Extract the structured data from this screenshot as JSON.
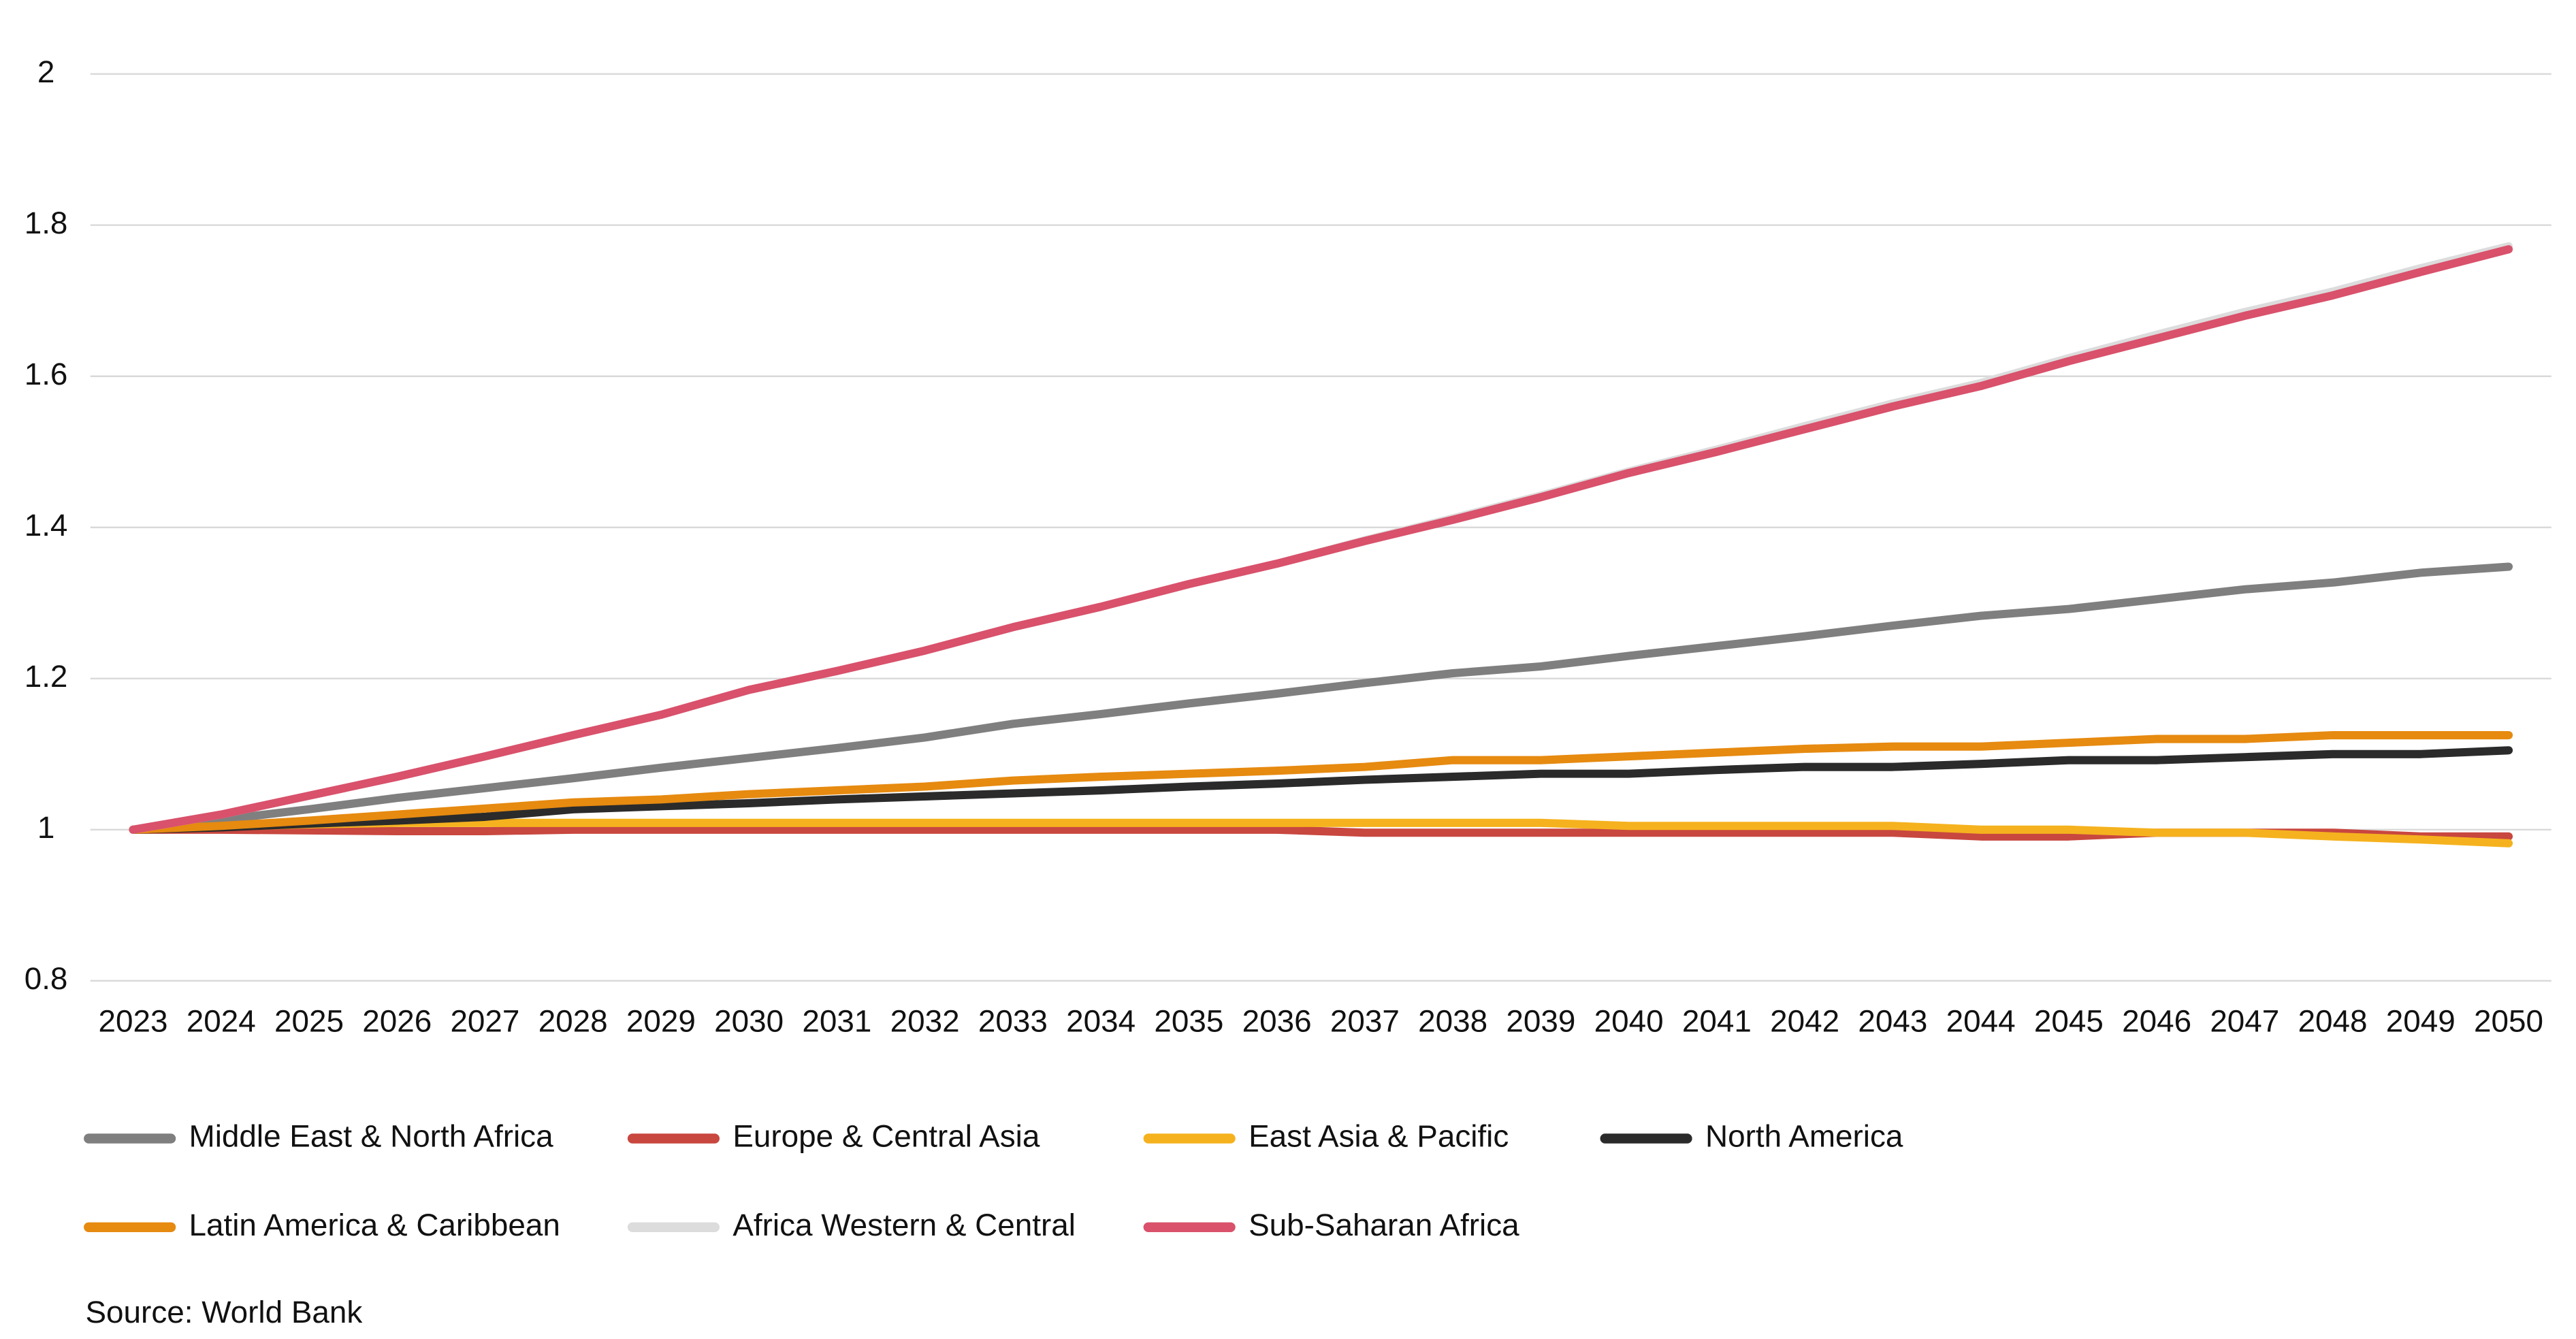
{
  "chart_data": {
    "type": "line",
    "categories": [
      "2023",
      "2024",
      "2025",
      "2026",
      "2027",
      "2028",
      "2029",
      "2030",
      "2031",
      "2032",
      "2033",
      "2034",
      "2035",
      "2036",
      "2037",
      "2038",
      "2039",
      "2040",
      "2041",
      "2042",
      "2043",
      "2044",
      "2045",
      "2046",
      "2047",
      "2048",
      "2049",
      "2050"
    ],
    "ylim": [
      0.8,
      2
    ],
    "yticks": [
      0.8,
      1,
      1.2,
      1.4,
      1.6,
      1.8,
      2
    ],
    "grid": true,
    "series": [
      {
        "name": "Middle East & North Africa",
        "color": "#7f7f7f",
        "values": [
          1.0,
          1.013,
          1.027,
          1.042,
          1.055,
          1.068,
          1.082,
          1.095,
          1.108,
          1.122,
          1.14,
          1.153,
          1.167,
          1.18,
          1.194,
          1.207,
          1.216,
          1.23,
          1.243,
          1.256,
          1.27,
          1.283,
          1.292,
          1.305,
          1.318,
          1.327,
          1.34,
          1.348
        ]
      },
      {
        "name": "Europe & Central Asia",
        "color": "#c8473f",
        "values": [
          1.0,
          1.0,
          0.999,
          0.998,
          0.998,
          1.0,
          1.0,
          1.0,
          1.0,
          1.0,
          1.0,
          1.0,
          1.0,
          1.0,
          0.996,
          0.996,
          0.996,
          0.996,
          0.996,
          0.996,
          0.996,
          0.991,
          0.991,
          0.996,
          0.996,
          0.996,
          0.991,
          0.991
        ]
      },
      {
        "name": "East Asia & Pacific",
        "color": "#f5b21e",
        "values": [
          1.0,
          1.004,
          1.007,
          1.009,
          1.009,
          1.009,
          1.009,
          1.009,
          1.009,
          1.009,
          1.009,
          1.009,
          1.009,
          1.009,
          1.009,
          1.009,
          1.009,
          1.005,
          1.005,
          1.005,
          1.005,
          1.0,
          1.0,
          0.996,
          0.996,
          0.991,
          0.987,
          0.982
        ]
      },
      {
        "name": "North America",
        "color": "#2b2b2b",
        "values": [
          1.0,
          1.003,
          1.008,
          1.012,
          1.017,
          1.027,
          1.031,
          1.035,
          1.04,
          1.044,
          1.048,
          1.052,
          1.057,
          1.061,
          1.066,
          1.07,
          1.074,
          1.074,
          1.079,
          1.083,
          1.083,
          1.087,
          1.092,
          1.092,
          1.096,
          1.1,
          1.1,
          1.105
        ]
      },
      {
        "name": "Latin America & Caribbean",
        "color": "#e68a10",
        "values": [
          1.0,
          1.005,
          1.012,
          1.02,
          1.028,
          1.036,
          1.04,
          1.047,
          1.052,
          1.057,
          1.065,
          1.07,
          1.074,
          1.078,
          1.083,
          1.092,
          1.092,
          1.097,
          1.102,
          1.107,
          1.11,
          1.11,
          1.115,
          1.12,
          1.12,
          1.125,
          1.125,
          1.125
        ]
      },
      {
        "name": "Africa Western & Central",
        "color": "#dcdcdc",
        "values": [
          1.0,
          1.02,
          1.045,
          1.07,
          1.097,
          1.125,
          1.152,
          1.185,
          1.21,
          1.237,
          1.268,
          1.295,
          1.325,
          1.352,
          1.383,
          1.412,
          1.442,
          1.474,
          1.503,
          1.534,
          1.564,
          1.591,
          1.624,
          1.655,
          1.685,
          1.712,
          1.743,
          1.772
        ]
      },
      {
        "name": "Sub-Saharan Africa",
        "color": "#d9516b",
        "values": [
          1.0,
          1.02,
          1.045,
          1.07,
          1.097,
          1.125,
          1.152,
          1.185,
          1.21,
          1.237,
          1.268,
          1.295,
          1.325,
          1.352,
          1.382,
          1.41,
          1.44,
          1.472,
          1.5,
          1.53,
          1.56,
          1.587,
          1.62,
          1.65,
          1.68,
          1.707,
          1.738,
          1.768
        ]
      }
    ],
    "source": "Source: World Bank"
  }
}
